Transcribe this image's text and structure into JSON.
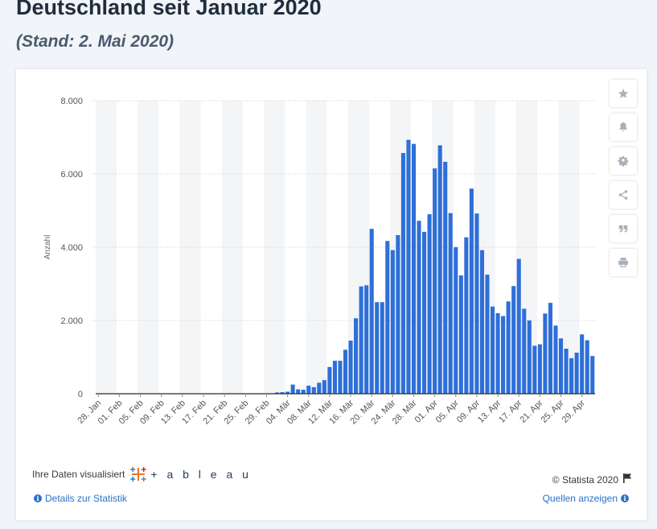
{
  "header": {
    "title": "Deutschland seit Januar 2020",
    "subtitle": "(Stand: 2. Mai 2020)"
  },
  "chart_data": {
    "type": "bar",
    "ylabel": "Anzahl",
    "ylim": [
      0,
      8000
    ],
    "yticks": [
      0,
      2000,
      4000,
      6000,
      8000
    ],
    "ytick_labels": [
      "0",
      "2.000",
      "4.000",
      "6.000",
      "8.000"
    ],
    "grid": true,
    "bar_color": "#2e6fd8",
    "xtick_labels": [
      "28. Jan",
      "01. Feb",
      "05. Feb",
      "09. Feb",
      "13. Feb",
      "17. Feb",
      "21. Feb",
      "25. Feb",
      "29. Feb",
      "04. Mär",
      "08. Mär",
      "12. Mär",
      "16. Mär",
      "20. Mär",
      "24. Mär",
      "28. Mär",
      "01. Apr",
      "05. Apr",
      "09. Apr",
      "13. Apr",
      "17. Apr",
      "21. Apr",
      "25. Apr",
      "29. Apr"
    ],
    "x_start": "2020-01-28",
    "values": [
      4,
      0,
      1,
      3,
      0,
      0,
      0,
      1,
      0,
      0,
      0,
      0,
      0,
      0,
      1,
      0,
      2,
      0,
      0,
      0,
      0,
      0,
      0,
      0,
      0,
      0,
      0,
      0,
      2,
      2,
      5,
      5,
      10,
      10,
      35,
      42,
      55,
      250,
      120,
      110,
      220,
      180,
      300,
      370,
      730,
      900,
      900,
      1200,
      1450,
      2060,
      2930,
      2960,
      4500,
      2500,
      2500,
      4170,
      3920,
      4330,
      6570,
      6930,
      6820,
      4720,
      4420,
      4900,
      6150,
      6780,
      6330,
      4930,
      4000,
      3230,
      4270,
      5600,
      4920,
      3920,
      3250,
      2380,
      2200,
      2120,
      2520,
      2940,
      3680,
      2320,
      2000,
      1310,
      1350,
      2190,
      2480,
      1860,
      1510,
      1230,
      970,
      1120,
      1620,
      1460,
      1030
    ]
  },
  "sidebar": {
    "icons": [
      "star-icon",
      "bell-icon",
      "gear-icon",
      "share-icon",
      "quote-icon",
      "print-icon"
    ]
  },
  "footer": {
    "viz_label": "Ihre Daten visualisiert",
    "tableau_label": "+ a b l e a u",
    "copyright": "© Statista 2020",
    "details_link": "Details zur Statistik",
    "sources_link": "Quellen anzeigen"
  }
}
